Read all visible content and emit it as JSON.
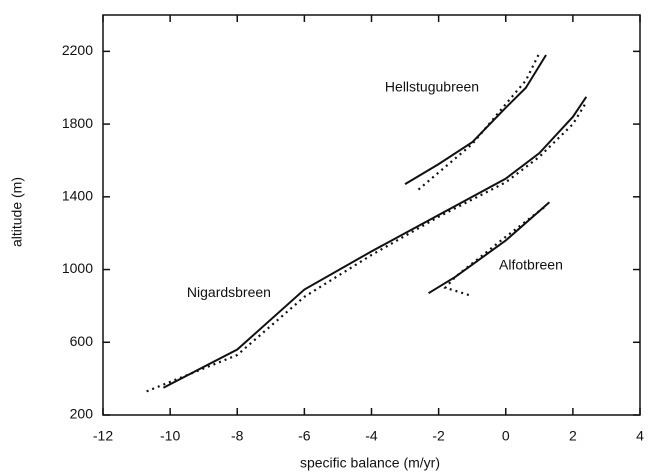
{
  "chart_data": {
    "type": "line",
    "xlabel": "specific balance (m/yr)",
    "ylabel": "altitude (m)",
    "xlim": [
      -12,
      4
    ],
    "ylim": [
      200,
      2400
    ],
    "xticks": [
      -12,
      -10,
      -8,
      -6,
      -4,
      -2,
      0,
      2,
      4
    ],
    "yticks": [
      200,
      600,
      1000,
      1400,
      1800,
      2200
    ],
    "annotations": [
      {
        "text": "Hellstugubreen",
        "x": -3.6,
        "y": 2000
      },
      {
        "text": "Nigardsbreen",
        "x": -9.5,
        "y": 870
      },
      {
        "text": "Alfotbreen",
        "x": -0.2,
        "y": 1020
      }
    ],
    "series": [
      {
        "color": "#111111",
        "style": "solid",
        "x": [
          -10.2,
          -8,
          -6,
          -4,
          -2,
          0,
          1,
          2,
          2.4
        ],
        "values": [
          350,
          560,
          890,
          1100,
          1300,
          1500,
          1640,
          1840,
          1950
        ]
      },
      {
        "color": "#111111",
        "style": "dotted",
        "x": [
          -10.7,
          -8,
          -6,
          -4,
          -2,
          0,
          1,
          2,
          2.4
        ],
        "values": [
          330,
          530,
          850,
          1080,
          1290,
          1480,
          1620,
          1800,
          1920
        ]
      },
      {
        "color": "#111111",
        "style": "solid",
        "x": [
          -3,
          -2,
          -1,
          0,
          0.6,
          1.2
        ],
        "values": [
          1470,
          1580,
          1700,
          1890,
          2000,
          2180
        ]
      },
      {
        "color": "#111111",
        "style": "dotted",
        "x": [
          -2.6,
          -1,
          0,
          0.6,
          1
        ],
        "values": [
          1440,
          1690,
          1910,
          2040,
          2190
        ]
      },
      {
        "color": "#111111",
        "style": "solid",
        "x": [
          -2.3,
          -1.5,
          0,
          1.3
        ],
        "values": [
          870,
          960,
          1160,
          1370
        ]
      },
      {
        "color": "#111111",
        "style": "dotted",
        "x": [
          -1.1,
          -1.8,
          -1.5,
          0,
          1.2
        ],
        "values": [
          860,
          900,
          960,
          1180,
          1350
        ]
      }
    ]
  }
}
